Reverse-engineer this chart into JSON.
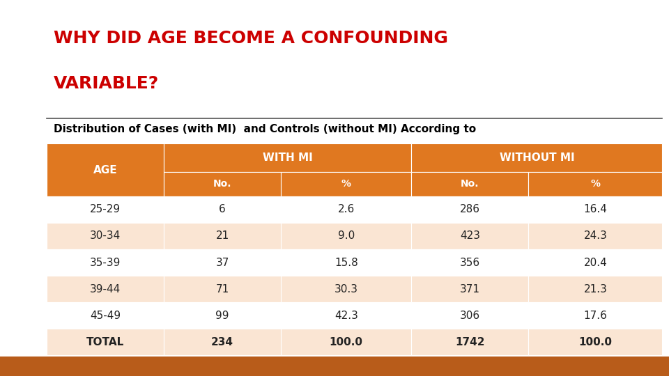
{
  "title_line1": "WHY DID AGE BECOME A CONFOUNDING",
  "title_line2": "VARIABLE?",
  "subtitle": "Distribution of Cases (with MI)  and Controls (without MI) According to",
  "title_color": "#CC0000",
  "subtitle_color": "#000000",
  "header_bg": "#E07820",
  "header_text_color": "#FFFFFF",
  "bg_color": "#FFFFFF",
  "footer_color": "#B85C1A",
  "rows": [
    [
      "25-29",
      "6",
      "2.6",
      "286",
      "16.4"
    ],
    [
      "30-34",
      "21",
      "9.0",
      "423",
      "24.3"
    ],
    [
      "35-39",
      "37",
      "15.8",
      "356",
      "20.4"
    ],
    [
      "39-44",
      "71",
      "30.3",
      "371",
      "21.3"
    ],
    [
      "45-49",
      "99",
      "42.3",
      "306",
      "17.6"
    ],
    [
      "TOTAL",
      "234",
      "100.0",
      "1742",
      "100.0"
    ]
  ],
  "row_colors": [
    "#FFFFFF",
    "#FAE5D3",
    "#FFFFFF",
    "#FAE5D3",
    "#FFFFFF",
    "#FAE5D3"
  ]
}
